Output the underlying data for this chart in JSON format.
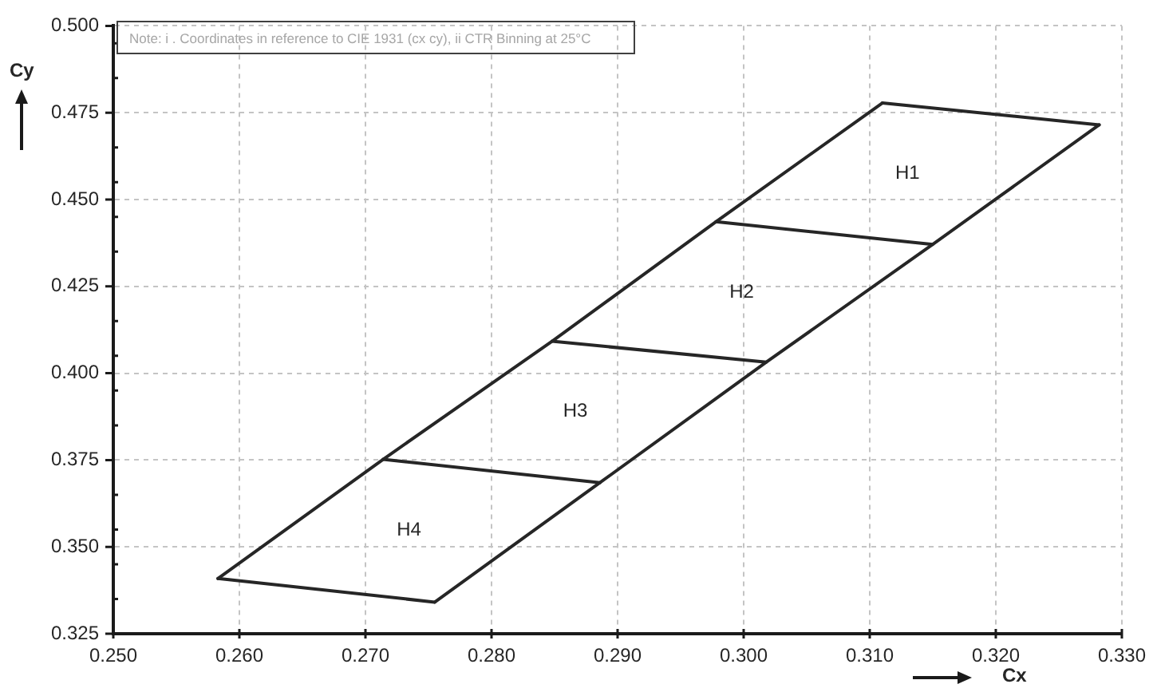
{
  "chart_data": {
    "type": "line",
    "xlabel": "Cx",
    "ylabel": "Cy",
    "annotations": [
      "Note: i . Coordinates in reference to CIE 1931 (cx cy), ii CTR Binning at 25°C",
      "H1",
      "H2",
      "H3",
      "H4"
    ],
    "series": [
      {
        "color": "#262626",
        "x": [
          0.2583,
          0.2714,
          0.2848,
          0.2978,
          0.311
        ],
        "values": [
          0.3409,
          0.3752,
          0.4092,
          0.4436,
          0.4778
        ]
      },
      {
        "color": "#262626",
        "x": [
          0.2755,
          0.2886,
          0.3018,
          0.315,
          0.3282
        ],
        "values": [
          0.3341,
          0.3685,
          0.4032,
          0.4371,
          0.4715
        ]
      },
      {
        "color": "#262626",
        "x": [
          0.2583,
          0.2755
        ],
        "values": [
          0.3409,
          0.3341
        ]
      },
      {
        "color": "#262626",
        "x": [
          0.2714,
          0.2886
        ],
        "values": [
          0.3752,
          0.3685
        ]
      },
      {
        "color": "#262626",
        "x": [
          0.2848,
          0.3018
        ],
        "values": [
          0.4092,
          0.4032
        ]
      },
      {
        "color": "#262626",
        "x": [
          0.2978,
          0.315
        ],
        "values": [
          0.4436,
          0.4371
        ]
      },
      {
        "color": "#262626",
        "x": [
          0.311,
          0.3282
        ],
        "values": [
          0.4778,
          0.4715
        ]
      }
    ],
    "xlim": [
      0.25,
      0.33
    ],
    "xticks": [
      {
        "value": 0.25,
        "label": "0.250"
      },
      {
        "value": 0.26,
        "label": "0.260"
      },
      {
        "value": 0.27,
        "label": "0.270"
      },
      {
        "value": 0.28,
        "label": "0.280"
      },
      {
        "value": 0.29,
        "label": "0.290"
      },
      {
        "value": 0.3,
        "label": "0.300"
      },
      {
        "value": 0.31,
        "label": "0.310"
      },
      {
        "value": 0.32,
        "label": "0.320"
      },
      {
        "value": 0.33,
        "label": "0.330"
      }
    ],
    "ylim": [
      0.325,
      0.5
    ],
    "yticks": [
      {
        "value": 0.325,
        "label": "0.325"
      },
      {
        "value": 0.335,
        "label": null
      },
      {
        "value": 0.345,
        "label": null
      },
      {
        "value": 0.35,
        "label": "0.350"
      },
      {
        "value": 0.355,
        "label": null
      },
      {
        "value": 0.365,
        "label": null
      },
      {
        "value": 0.375,
        "label": "0.375"
      },
      {
        "value": 0.385,
        "label": null
      },
      {
        "value": 0.395,
        "label": null
      },
      {
        "value": 0.4,
        "label": "0.400"
      },
      {
        "value": 0.405,
        "label": null
      },
      {
        "value": 0.415,
        "label": null
      },
      {
        "value": 0.425,
        "label": "0.425"
      },
      {
        "value": 0.435,
        "label": null
      },
      {
        "value": 0.445,
        "label": null
      },
      {
        "value": 0.45,
        "label": "0.450"
      },
      {
        "value": 0.455,
        "label": null
      },
      {
        "value": 0.465,
        "label": null
      },
      {
        "value": 0.475,
        "label": "0.475"
      },
      {
        "value": 0.485,
        "label": null
      },
      {
        "value": 0.495,
        "label": null
      },
      {
        "value": 0.5,
        "label": "0.500"
      }
    ],
    "grid": true,
    "legend": false,
    "marker": "none",
    "line_style": "solid"
  }
}
